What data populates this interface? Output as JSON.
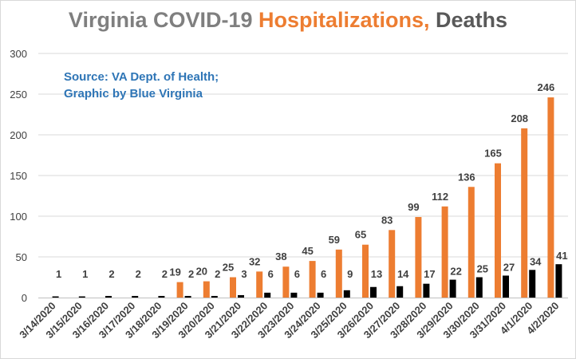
{
  "chart_data": {
    "type": "bar",
    "title_parts": {
      "part1": "Virginia COVID-19 ",
      "part2": "Hospitalizations,",
      "part3": " Deaths"
    },
    "source_line1": "Source: VA Dept. of Health;",
    "source_line2": "Graphic by Blue Virginia",
    "categories": [
      "3/14/2020",
      "3/15/2020",
      "3/16/2020",
      "3/17/2020",
      "3/18/2020",
      "3/19/2020",
      "3/20/2020",
      "3/21/2020",
      "3/22/2020",
      "3/23/2020",
      "3/24/2020",
      "3/25/2020",
      "3/26/2020",
      "3/27/2020",
      "3/28/2020",
      "3/29/2020",
      "3/30/2020",
      "3/31/2020",
      "4/1/2020",
      "4/2/2020"
    ],
    "series": [
      {
        "name": "Hospitalizations",
        "color": "#ed7d31",
        "values": [
          null,
          null,
          null,
          null,
          null,
          19,
          20,
          25,
          32,
          38,
          45,
          59,
          65,
          83,
          99,
          112,
          136,
          165,
          208,
          246
        ]
      },
      {
        "name": "Deaths",
        "color": "#000000",
        "values": [
          1,
          1,
          2,
          2,
          2,
          2,
          2,
          3,
          6,
          6,
          6,
          9,
          13,
          14,
          17,
          22,
          25,
          27,
          34,
          41
        ]
      }
    ],
    "ylim": [
      0,
      300
    ],
    "yticks": [
      0,
      50,
      100,
      150,
      200,
      250,
      300
    ],
    "grid": true
  }
}
